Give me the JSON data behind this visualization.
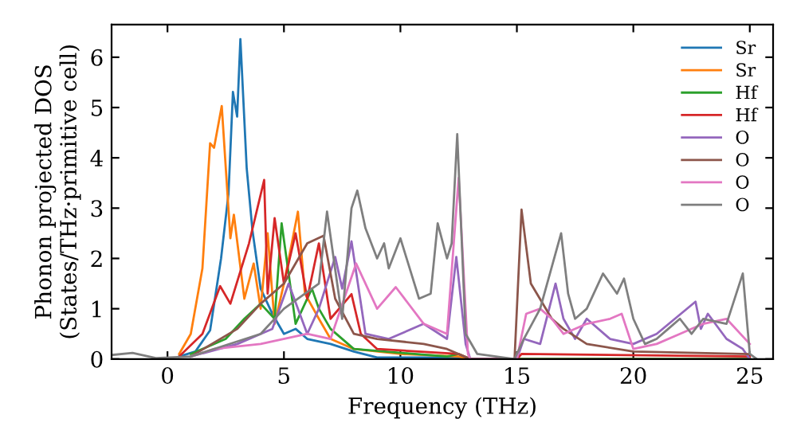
{
  "chart_data": {
    "type": "line",
    "xlabel": "Frequency (THz)",
    "ylabel": "Phonon projected DOS\n(States/THz·primitive cell)",
    "xlim": [
      -2.4,
      26
    ],
    "ylim": [
      0,
      6.65
    ],
    "xticks": [
      0,
      5,
      10,
      15,
      20,
      25
    ],
    "yticks": [
      0,
      1,
      2,
      3,
      4,
      5,
      6
    ],
    "legend": "top right",
    "grid": false,
    "marker": "none",
    "line_style": "solid",
    "series": [
      {
        "name": "Sr",
        "color": "#1f77b4",
        "x": [
          0.5,
          1.2,
          1.83,
          2.3,
          2.62,
          2.81,
          2.99,
          3.13,
          3.4,
          3.65,
          4.0,
          4.5,
          5.0,
          5.5,
          6.0,
          7.0,
          8.0,
          9.0,
          12.5,
          13,
          25
        ],
        "values": [
          0.05,
          0.15,
          0.57,
          2.0,
          3.29,
          5.31,
          4.82,
          6.36,
          3.8,
          2.55,
          1.4,
          0.9,
          0.5,
          0.6,
          0.4,
          0.3,
          0.15,
          0.03,
          0.03,
          0,
          0
        ]
      },
      {
        "name": "Sr",
        "color": "#ff7f0e",
        "x": [
          0.5,
          1.0,
          1.5,
          1.83,
          2.0,
          2.33,
          2.7,
          2.85,
          3.3,
          3.7,
          4.0,
          4.3,
          4.6,
          5.0,
          5.6,
          5.9,
          6.5,
          7.0,
          8.0,
          10.0,
          12.5,
          13,
          25
        ],
        "values": [
          0.1,
          0.5,
          1.8,
          4.29,
          4.2,
          5.03,
          2.4,
          2.87,
          1.2,
          1.9,
          1.0,
          2.5,
          0.7,
          1.5,
          2.93,
          1.3,
          0.8,
          0.4,
          0.2,
          0.1,
          0.05,
          0,
          0
        ]
      },
      {
        "name": "Hf",
        "color": "#2ca02c",
        "x": [
          1.0,
          2.5,
          3.3,
          4.0,
          4.6,
          4.9,
          5.5,
          6.2,
          6.5,
          7.0,
          8.0,
          12.0,
          12.5,
          13,
          25
        ],
        "values": [
          0.1,
          0.4,
          0.8,
          1.1,
          0.8,
          2.7,
          0.7,
          1.4,
          1.0,
          0.6,
          0.2,
          0.05,
          0.1,
          0,
          0
        ]
      },
      {
        "name": "Hf",
        "color": "#d62728",
        "x": [
          0.5,
          1.5,
          2.26,
          2.7,
          3.5,
          4.15,
          4.3,
          4.6,
          5.0,
          5.5,
          6.0,
          6.5,
          7.0,
          7.9,
          8.3,
          9.0,
          12.5,
          13,
          15,
          15.2,
          25
        ],
        "values": [
          0.05,
          0.5,
          1.45,
          1.1,
          2.3,
          3.56,
          1.3,
          2.8,
          1.5,
          2.5,
          1.2,
          2.3,
          0.8,
          1.29,
          0.5,
          0.2,
          0.1,
          0,
          0,
          0.1,
          0.05
        ]
      },
      {
        "name": "O",
        "color": "#9467bd",
        "x": [
          1.0,
          3.0,
          4.5,
          5.2,
          6.0,
          6.5,
          7.2,
          7.5,
          7.9,
          8.5,
          9.5,
          11.0,
          12.0,
          12.4,
          12.8,
          13,
          15,
          15.3,
          16.0,
          16.66,
          17.0,
          17.5,
          18.0,
          19.0,
          20.0,
          21.0,
          22.67,
          22.9,
          23.2,
          24.0,
          24.7,
          25.0
        ],
        "values": [
          0.05,
          0.3,
          0.6,
          1.5,
          0.5,
          1.0,
          2.03,
          1.4,
          2.34,
          0.5,
          0.4,
          0.7,
          0.4,
          2.03,
          0.3,
          0,
          0,
          0.4,
          0.3,
          1.5,
          0.8,
          0.4,
          0.8,
          0.4,
          0.3,
          0.5,
          1.14,
          0.6,
          0.9,
          0.4,
          0.2,
          0
        ]
      },
      {
        "name": "O",
        "color": "#8c564b",
        "x": [
          1.0,
          3.0,
          4.0,
          5.0,
          6.0,
          6.7,
          7.2,
          8.0,
          9.0,
          11.0,
          12.0,
          13,
          14.9,
          15.2,
          15.6,
          16.5,
          17.0,
          18.0,
          20.0,
          25.0
        ],
        "values": [
          0.05,
          0.6,
          1.1,
          1.5,
          2.3,
          2.45,
          1.2,
          0.5,
          0.4,
          0.3,
          0.2,
          0,
          0,
          2.97,
          1.5,
          0.8,
          0.6,
          0.3,
          0.15,
          0.1
        ]
      },
      {
        "name": "O",
        "color": "#e377c2",
        "x": [
          1.0,
          2.0,
          4.0,
          6.0,
          7.0,
          8.1,
          9.0,
          9.8,
          11.0,
          12.0,
          12.5,
          12.9,
          13,
          15,
          15.4,
          16.0,
          16.5,
          17.0,
          18.0,
          19.0,
          19.5,
          20.0,
          21.0,
          22.0,
          23.0,
          24.0,
          25.0
        ],
        "values": [
          0.05,
          0.2,
          0.3,
          0.5,
          0.4,
          1.9,
          1.0,
          1.43,
          0.7,
          0.5,
          3.6,
          0.1,
          0,
          0,
          0.9,
          1.0,
          0.8,
          0.5,
          0.7,
          0.8,
          0.9,
          0.2,
          0.3,
          0.5,
          0.7,
          0.8,
          0.3
        ]
      },
      {
        "name": "O",
        "color": "#7f7f7f",
        "x": [
          -2.4,
          -1.5,
          -0.5,
          1.0,
          4.0,
          5.0,
          6.5,
          6.85,
          7.5,
          7.9,
          8.15,
          8.5,
          9.0,
          9.3,
          9.5,
          10.0,
          10.8,
          11.3,
          11.6,
          12.0,
          12.2,
          12.44,
          12.8,
          13.3,
          14.9,
          15.3,
          16.0,
          16.9,
          17.2,
          17.5,
          18.0,
          18.7,
          19.3,
          19.6,
          20.0,
          20.5,
          21.0,
          21.5,
          22.0,
          22.5,
          23.0,
          24.0,
          24.7,
          25.0,
          25.3
        ],
        "values": [
          0.08,
          0.12,
          0.02,
          0.05,
          0.5,
          1.0,
          1.5,
          2.93,
          0.8,
          3.0,
          3.35,
          2.6,
          2.0,
          2.3,
          1.8,
          2.4,
          1.2,
          1.3,
          2.7,
          2.0,
          2.3,
          4.47,
          0.5,
          0.1,
          0,
          0.4,
          1.0,
          2.5,
          1.3,
          0.8,
          1.0,
          1.7,
          1.3,
          1.6,
          0.8,
          0.3,
          0.4,
          0.6,
          0.8,
          0.5,
          0.8,
          0.7,
          1.7,
          0.1,
          0
        ]
      }
    ]
  }
}
